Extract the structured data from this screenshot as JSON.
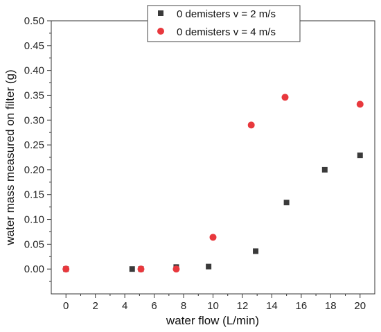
{
  "chart_data": {
    "type": "scatter",
    "xlabel": "water flow (L/min)",
    "ylabel": "water mass measured on filter (g)",
    "xlim": [
      -1,
      21
    ],
    "ylim": [
      -0.05,
      0.5
    ],
    "x_ticks": [
      "0",
      "2",
      "4",
      "6",
      "8",
      "10",
      "12",
      "14",
      "16",
      "18",
      "20"
    ],
    "y_ticks": [
      "0.00",
      "0.05",
      "0.10",
      "0.15",
      "0.20",
      "0.25",
      "0.30",
      "0.35",
      "0.40",
      "0.45",
      "0.50"
    ],
    "legend_position": "top-right",
    "series": [
      {
        "name": "0 demisters v = 2 m/s",
        "marker": "square",
        "color": "#3a3a3a",
        "points": [
          {
            "x": 0,
            "y": 0.0
          },
          {
            "x": 4.5,
            "y": 0.0
          },
          {
            "x": 5.1,
            "y": 0.0
          },
          {
            "x": 7.5,
            "y": 0.004
          },
          {
            "x": 9.7,
            "y": 0.005
          },
          {
            "x": 12.9,
            "y": 0.036
          },
          {
            "x": 15.0,
            "y": 0.134
          },
          {
            "x": 17.6,
            "y": 0.2
          },
          {
            "x": 20.0,
            "y": 0.229
          }
        ]
      },
      {
        "name": "0 demisters v = 4 m/s",
        "marker": "circle",
        "color": "#e8383d",
        "points": [
          {
            "x": 0,
            "y": 0.0
          },
          {
            "x": 5.1,
            "y": 0.0
          },
          {
            "x": 7.5,
            "y": 0.0
          },
          {
            "x": 10.0,
            "y": 0.064
          },
          {
            "x": 12.6,
            "y": 0.29
          },
          {
            "x": 14.9,
            "y": 0.346
          },
          {
            "x": 20.0,
            "y": 0.332
          }
        ]
      }
    ]
  }
}
